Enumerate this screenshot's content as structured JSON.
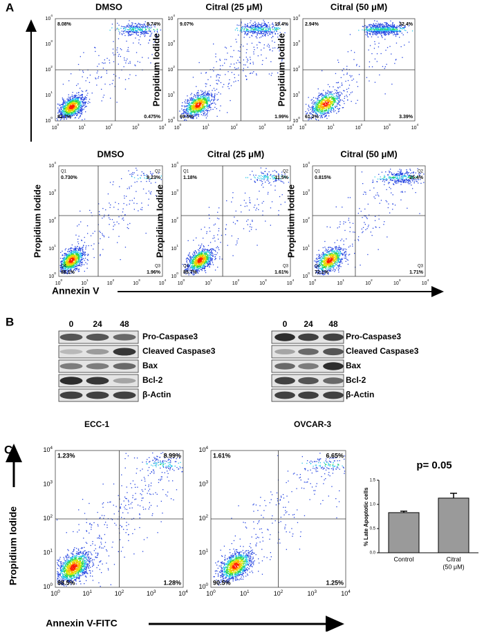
{
  "flow_ticks": [
    {
      "base": "10",
      "exp": "0"
    },
    {
      "base": "10",
      "exp": "1"
    },
    {
      "base": "10",
      "exp": "2"
    },
    {
      "base": "10",
      "exp": "3"
    },
    {
      "base": "10",
      "exp": "4"
    }
  ],
  "panel_a": {
    "label": "A",
    "y_axis_label": "Propidium Iodide",
    "x_axis_label": "Annexin V",
    "rows": [
      [
        {
          "title": "DMSO",
          "quadrants": {
            "upper_left": "8.08%",
            "upper_right": "8.74%",
            "lower_left": "82.7%",
            "lower_right": "0.475%"
          }
        },
        {
          "title": "Citral (25 μM)",
          "quadrants": {
            "upper_left": "9.07%",
            "upper_right": "19.4%",
            "lower_left": "69.5%",
            "lower_right": "1.99%"
          }
        },
        {
          "title": "Citral (50 μM)",
          "quadrants": {
            "upper_left": "2.94%",
            "upper_right": "32.4%",
            "lower_left": "61.2%",
            "lower_right": "3.39%"
          }
        }
      ],
      [
        {
          "title": "DMSO",
          "q_names": {
            "upper_left": "Q1",
            "upper_right": "Q2",
            "lower_left": "Q4",
            "lower_right": "Q3"
          },
          "quadrants": {
            "upper_left": "0.730%",
            "upper_right": "9.23%",
            "lower_left": "88.1%",
            "lower_right": "1.96%"
          }
        },
        {
          "title": "Citral (25 μM)",
          "q_names": {
            "upper_left": "Q1",
            "upper_right": "Q2",
            "lower_left": "Q4",
            "lower_right": "Q3"
          },
          "quadrants": {
            "upper_left": "1.18%",
            "upper_right": "11.5%",
            "lower_left": "85.7%",
            "lower_right": "1.61%"
          }
        },
        {
          "title": "Citral (50 μM)",
          "q_names": {
            "upper_left": "Q1",
            "upper_right": "Q2",
            "lower_left": "Q4",
            "lower_right": "Q3"
          },
          "quadrants": {
            "upper_left": "0.815%",
            "upper_right": "25.4%",
            "lower_left": "72.1%",
            "lower_right": "1.71%"
          }
        }
      ]
    ]
  },
  "panel_b": {
    "label": "B",
    "lanes": [
      "0",
      "24",
      "48"
    ],
    "blots": [
      {
        "cell_line": "ECC-1",
        "proteins": [
          "Pro-Caspase3",
          "Cleaved Caspase3",
          "Bax",
          "Bcl-2",
          "β-Actin"
        ]
      },
      {
        "cell_line": "OVCAR-3",
        "proteins": [
          "Pro-Caspase3",
          "Cleaved Caspase3",
          "Bax",
          "Bcl-2",
          "β-Actin"
        ]
      }
    ]
  },
  "panel_c": {
    "label": "C",
    "y_axis_label": "Propidium Iodide",
    "x_axis_label": "Annexin V-FITC",
    "plots": [
      {
        "quadrants": {
          "upper_left": "1.23%",
          "upper_right": "8.99%",
          "lower_left": "88.5%",
          "lower_right": "1.28%"
        }
      },
      {
        "quadrants": {
          "upper_left": "1.61%",
          "upper_right": "6.65%",
          "lower_left": "90.5%",
          "lower_right": "1.25%"
        }
      }
    ],
    "bar_chart": {
      "type": "bar",
      "annotation": "p= 0.05",
      "y_axis_label": "% Late Apoptotic cells",
      "categories": [
        [
          "Control"
        ],
        [
          "Citral",
          "(50 μM)"
        ]
      ],
      "values": [
        0.83,
        1.13
      ],
      "errors": [
        0.03,
        0.1
      ],
      "color": "#9a9a9a",
      "ylim": [
        0,
        1.5
      ],
      "yticks": [
        {
          "value": 0,
          "label": "0.0"
        },
        0.5,
        {
          "value": 1,
          "label": "1.0"
        },
        1.5
      ]
    }
  }
}
